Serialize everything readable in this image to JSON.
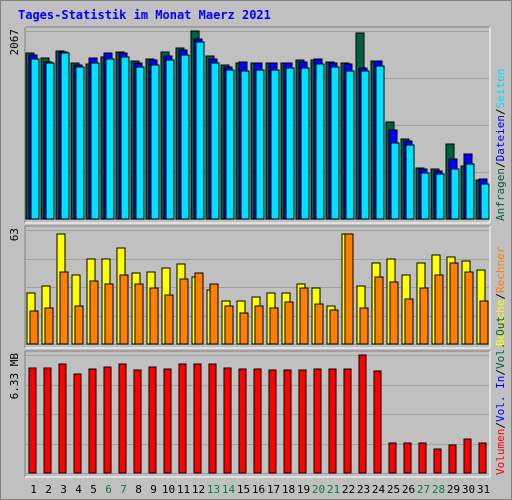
{
  "chart_data": [
    {
      "type": "bar",
      "title": "Tages-Statistik im Monat Maerz 2021",
      "ylabel_max": "2067",
      "ymax": 2067,
      "categories": [
        "1",
        "2",
        "3",
        "4",
        "5",
        "6",
        "7",
        "8",
        "9",
        "10",
        "11",
        "12",
        "13",
        "14",
        "15",
        "16",
        "17",
        "18",
        "19",
        "20",
        "21",
        "22",
        "23",
        "24",
        "25",
        "26",
        "27",
        "28",
        "29",
        "30",
        "31"
      ],
      "weekend_days": [
        "6",
        "7",
        "13",
        "14",
        "20",
        "21",
        "27",
        "28"
      ],
      "legend": [
        {
          "text": "Anfragen",
          "color": "#006040"
        },
        {
          "text": "Dateien",
          "color": "#0000ff"
        },
        {
          "text": "Seiten",
          "color": "#00e0ff"
        }
      ],
      "series": [
        {
          "name": "Anfragen",
          "color": "#006040",
          "values": [
            1820,
            1770,
            1850,
            1720,
            1700,
            1780,
            1840,
            1740,
            1760,
            1840,
            1880,
            2067,
            1790,
            1690,
            1710,
            1720,
            1720,
            1710,
            1750,
            1750,
            1730,
            1710,
            2040,
            1740,
            1070,
            880,
            560,
            550,
            820,
            580,
            430
          ]
        },
        {
          "name": "Dateien",
          "color": "#0000ff",
          "values": [
            1800,
            1730,
            1840,
            1690,
            1770,
            1830,
            1830,
            1710,
            1750,
            1790,
            1860,
            1980,
            1760,
            1670,
            1730,
            1710,
            1710,
            1720,
            1730,
            1760,
            1720,
            1700,
            1660,
            1740,
            980,
            860,
            550,
            530,
            660,
            710,
            440
          ]
        },
        {
          "name": "Seiten",
          "color": "#00e0ff",
          "values": [
            1760,
            1720,
            1820,
            1670,
            1720,
            1760,
            1780,
            1670,
            1690,
            1750,
            1800,
            1950,
            1720,
            1640,
            1630,
            1640,
            1640,
            1660,
            1660,
            1700,
            1670,
            1630,
            1630,
            1680,
            840,
            810,
            510,
            500,
            550,
            610,
            380
          ]
        }
      ]
    },
    {
      "type": "bar",
      "ylabel_max": "63",
      "ymax": 63,
      "categories": [
        "1",
        "2",
        "3",
        "4",
        "5",
        "6",
        "7",
        "8",
        "9",
        "10",
        "11",
        "12",
        "13",
        "14",
        "15",
        "16",
        "17",
        "18",
        "19",
        "20",
        "21",
        "22",
        "23",
        "24",
        "25",
        "26",
        "27",
        "28",
        "29",
        "30",
        "31"
      ],
      "legend": [
        {
          "text": "Besuche",
          "color": "#ffff00"
        },
        {
          "text": "Rechner",
          "color": "#ff8000"
        }
      ],
      "series": [
        {
          "name": "Besuche",
          "color": "#ffff00",
          "values": [
            28,
            32,
            61,
            38,
            47,
            47,
            53,
            39,
            40,
            42,
            44,
            37,
            30,
            24,
            24,
            26,
            28,
            28,
            33,
            31,
            21,
            61,
            32,
            45,
            47,
            38,
            45,
            49,
            48,
            46,
            41
          ]
        },
        {
          "name": "Rechner",
          "color": "#ff8000",
          "values": [
            18,
            20,
            40,
            21,
            35,
            33,
            38,
            33,
            31,
            27,
            36,
            39,
            33,
            21,
            17,
            21,
            20,
            23,
            31,
            22,
            19,
            61,
            20,
            37,
            34,
            25,
            31,
            38,
            45,
            40,
            24
          ]
        }
      ]
    },
    {
      "type": "bar",
      "ylabel_max": "6.33 MB",
      "ymax": 6.33,
      "categories": [
        "1",
        "2",
        "3",
        "4",
        "5",
        "6",
        "7",
        "8",
        "9",
        "10",
        "11",
        "12",
        "13",
        "14",
        "15",
        "16",
        "17",
        "18",
        "19",
        "20",
        "21",
        "22",
        "23",
        "24",
        "25",
        "26",
        "27",
        "28",
        "29",
        "30",
        "31"
      ],
      "legend": [
        {
          "text": "Volumen",
          "color": "#ff0000"
        },
        {
          "text": "Vol. In",
          "color": "#0000ff"
        },
        {
          "text": "Vol. Out",
          "color": "#006040"
        }
      ],
      "series": [
        {
          "name": "Volumen",
          "color": "#ff0000",
          "values": [
            5.65,
            5.65,
            5.85,
            5.3,
            5.6,
            5.7,
            5.85,
            5.5,
            5.7,
            5.6,
            5.85,
            5.85,
            5.85,
            5.65,
            5.6,
            5.6,
            5.5,
            5.5,
            5.5,
            5.6,
            5.6,
            5.6,
            6.33,
            5.45,
            1.6,
            1.6,
            1.6,
            1.3,
            1.5,
            1.8,
            1.6
          ]
        }
      ]
    }
  ]
}
